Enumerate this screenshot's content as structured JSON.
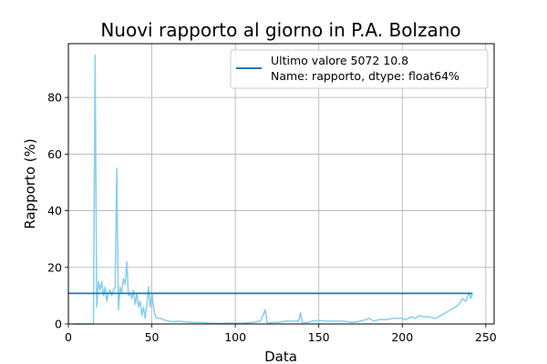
{
  "chart_data": {
    "type": "line",
    "title": "Nuovi rapporto al giorno in P.A. Bolzano",
    "xlabel": "Data",
    "ylabel": "Rapporto (%)",
    "xlim": [
      0,
      255
    ],
    "ylim": [
      0,
      99
    ],
    "xticks": [
      0,
      50,
      100,
      150,
      200,
      250
    ],
    "yticks": [
      0,
      20,
      40,
      60,
      80
    ],
    "grid": true,
    "legend_position": "top-right",
    "legend": {
      "line1": "Ultimo valore 5072    10.8",
      "line2": "Name: rapporto, dtype: float64%"
    },
    "colors": {
      "series": "#87ceeb",
      "reference": "#1f77b4"
    },
    "series": [
      {
        "x": [
          3,
          5,
          15,
          16,
          17,
          18,
          19,
          20,
          21,
          22,
          23,
          24,
          25,
          26,
          27,
          28,
          29,
          30,
          31,
          32,
          33,
          34,
          35,
          36,
          37,
          38,
          39,
          40,
          41,
          42,
          43,
          44,
          45,
          46,
          47,
          48,
          49,
          50,
          51,
          52,
          53,
          55,
          57,
          60,
          63,
          66,
          70,
          75,
          80,
          85,
          90,
          95,
          100,
          105,
          110,
          115,
          118,
          119,
          120,
          122,
          125,
          130,
          135,
          138,
          139,
          140,
          143,
          146,
          150,
          155,
          160,
          165,
          170,
          175,
          178,
          180,
          183,
          186,
          190,
          195,
          200,
          202,
          205,
          208,
          210,
          213,
          216,
          220,
          223,
          226,
          229,
          232,
          234,
          236,
          238,
          240,
          241,
          242
        ],
        "values": [
          0,
          0,
          0,
          95,
          6,
          15,
          12,
          15,
          10,
          13,
          8,
          11,
          12,
          10,
          12,
          13,
          55,
          5,
          13,
          11,
          16,
          14,
          22,
          10,
          11,
          9,
          12,
          7,
          11,
          6,
          8,
          3,
          6,
          2,
          7,
          13,
          6,
          11,
          6,
          3,
          2,
          2,
          1.5,
          1,
          0.8,
          1,
          0.7,
          0.5,
          0.5,
          0.3,
          0.2,
          0.3,
          0.3,
          0.3,
          0.5,
          1,
          5,
          0.5,
          0.3,
          0.5,
          0.5,
          1,
          1,
          1,
          4,
          0.5,
          0.5,
          1,
          1.2,
          1,
          1,
          1,
          0.5,
          1,
          1.5,
          2,
          1,
          1.5,
          1.5,
          2,
          2,
          1.5,
          2.5,
          2,
          3,
          2.5,
          2.5,
          2,
          3,
          4,
          5,
          6,
          7,
          9,
          8,
          11,
          9,
          11
        ]
      }
    ],
    "reference_line": {
      "y": 10.8,
      "x_range": [
        0,
        242
      ]
    }
  }
}
